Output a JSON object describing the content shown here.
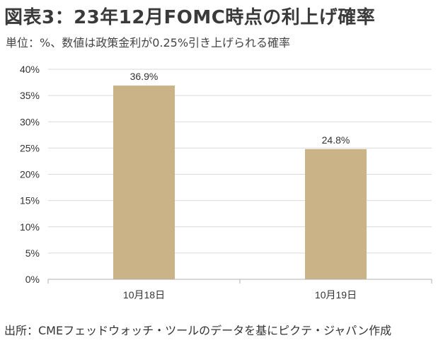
{
  "header": {
    "title": "図表3：23年12月FOMC時点の利上げ確率",
    "subtitle": "単位：%、数値は政策金利が0.25%引き上げられる確率"
  },
  "footer": {
    "source": "出所：CMEフェッドウォッチ・ツールのデータを基にピクテ・ジャパン作成"
  },
  "colors": {
    "bar": "#c9b387",
    "gridline": "#d9d9d9",
    "axis": "#b0b0b0"
  },
  "chart_data": {
    "type": "bar",
    "title": "図表3：23年12月FOMC時点の利上げ確率",
    "subtitle": "単位：%、数値は政策金利が0.25%引き上げられる確率",
    "xlabel": "",
    "ylabel": "",
    "categories": [
      "10月18日",
      "10月19日"
    ],
    "values": [
      36.9,
      24.8
    ],
    "data_labels": [
      "36.9%",
      "24.8%"
    ],
    "ylim": [
      0,
      40
    ],
    "yticks": [
      0,
      5,
      10,
      15,
      20,
      25,
      30,
      35,
      40
    ],
    "ytick_labels": [
      "0%",
      "5%",
      "10%",
      "15%",
      "20%",
      "25%",
      "30%",
      "35%",
      "40%"
    ],
    "grid": true,
    "legend": "none"
  }
}
